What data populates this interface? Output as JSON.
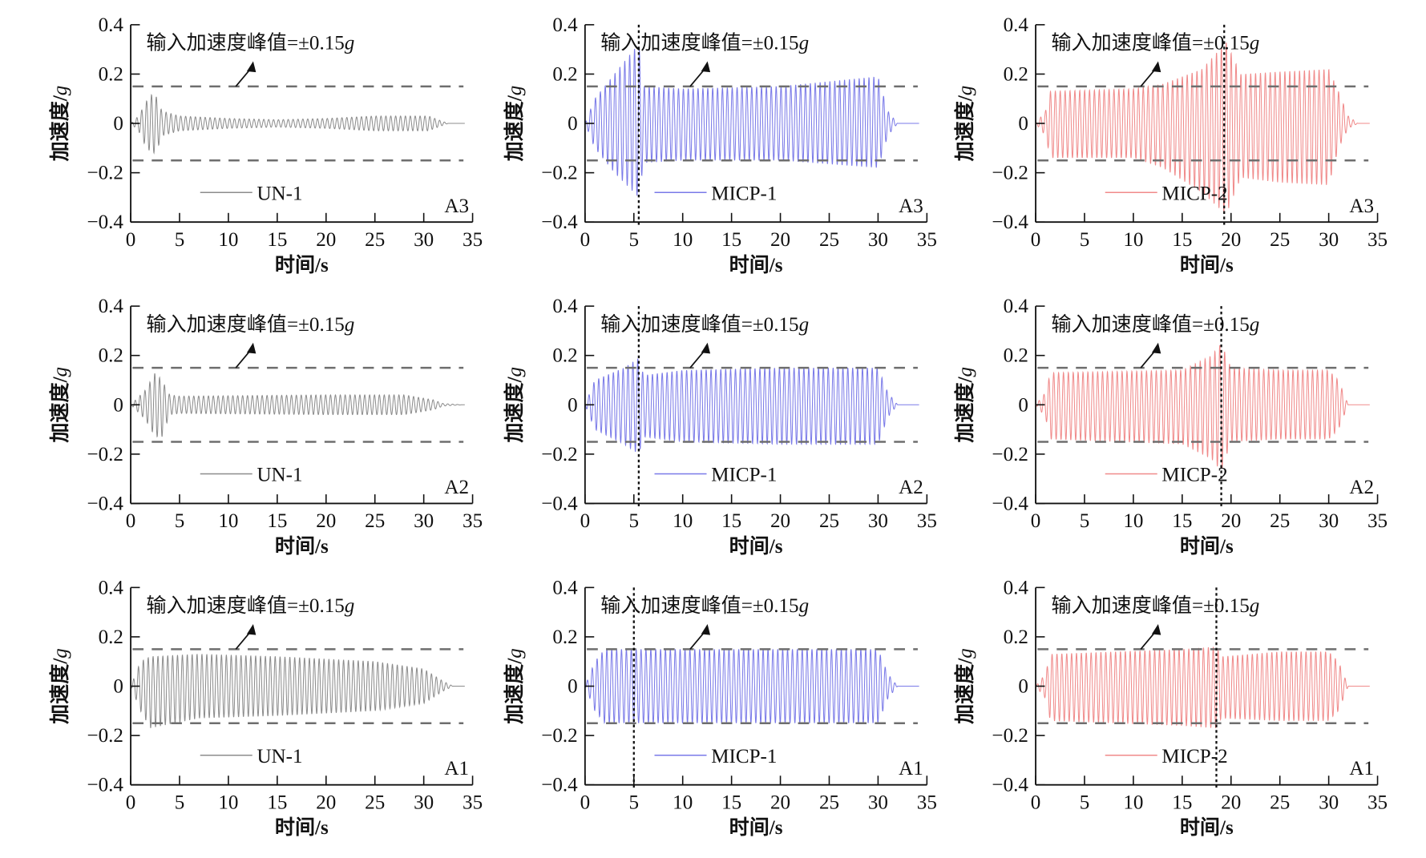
{
  "chart_data": {
    "type": "line",
    "layout": "3x3 grid",
    "xlabel": "时间/s",
    "ylabel_text": "加速度/",
    "ylabel_unit": "g",
    "xlim": [
      0,
      35
    ],
    "ylim": [
      -0.4,
      0.4
    ],
    "xticks": [
      "0",
      "5",
      "10",
      "15",
      "20",
      "25",
      "30",
      "35"
    ],
    "yticks": [
      "0.4",
      "0.2",
      "0",
      "−0.2",
      "−0.4"
    ],
    "ytick_values": [
      0.4,
      0.2,
      0,
      -0.2,
      -0.4
    ],
    "xtick_values": [
      0,
      5,
      10,
      15,
      20,
      25,
      30,
      35
    ],
    "reference_lines": [
      0.15,
      -0.15
    ],
    "annotation_text": "输入加速度峰值=±0.15",
    "annotation_unit": "g",
    "frequency_hz": 2,
    "panels": [
      {
        "series": "UN-1",
        "position": "A3",
        "color": "#8c8c8c",
        "marker_time": null,
        "envelope": [
          [
            0,
            0,
            0
          ],
          [
            0.8,
            0.03,
            0.03
          ],
          [
            1.6,
            0.09,
            0.1
          ],
          [
            2.2,
            0.12,
            0.12
          ],
          [
            2.6,
            0.11,
            0.12
          ],
          [
            3.2,
            0.05,
            0.05
          ],
          [
            5,
            0.03,
            0.03
          ],
          [
            10,
            0.02,
            0.02
          ],
          [
            15,
            0.015,
            0.015
          ],
          [
            20,
            0.02,
            0.02
          ],
          [
            25,
            0.03,
            0.03
          ],
          [
            30.5,
            0.03,
            0.03
          ],
          [
            31.8,
            0.01,
            0.01
          ],
          [
            32.5,
            0,
            0
          ],
          [
            35,
            0,
            0
          ]
        ]
      },
      {
        "series": "MICP-1",
        "position": "A3",
        "color": "#7a7ae8",
        "marker_time": 5.5,
        "envelope": [
          [
            0,
            0,
            0
          ],
          [
            1,
            0.1,
            0.1
          ],
          [
            3,
            0.2,
            0.2
          ],
          [
            5,
            0.3,
            0.28
          ],
          [
            5.5,
            0.32,
            0.3
          ],
          [
            6,
            0.15,
            0.16
          ],
          [
            10,
            0.14,
            0.15
          ],
          [
            20,
            0.15,
            0.15
          ],
          [
            30,
            0.19,
            0.18
          ],
          [
            31,
            0.05,
            0.05
          ],
          [
            32,
            0,
            0
          ],
          [
            35,
            0,
            0
          ]
        ]
      },
      {
        "series": "MICP-2",
        "position": "A3",
        "color": "#f08a8a",
        "marker_time": 19.3,
        "envelope": [
          [
            0,
            0,
            0
          ],
          [
            1,
            0.05,
            0.05
          ],
          [
            1.5,
            0.13,
            0.14
          ],
          [
            10,
            0.14,
            0.14
          ],
          [
            13,
            0.16,
            0.18
          ],
          [
            17,
            0.22,
            0.28
          ],
          [
            19.5,
            0.33,
            0.37
          ],
          [
            21,
            0.2,
            0.22
          ],
          [
            25,
            0.21,
            0.24
          ],
          [
            30,
            0.22,
            0.25
          ],
          [
            31,
            0.13,
            0.1
          ],
          [
            32,
            0.03,
            0.02
          ],
          [
            33,
            0,
            0
          ],
          [
            35,
            0,
            0
          ]
        ]
      },
      {
        "series": "UN-1",
        "position": "A2",
        "color": "#8c8c8c",
        "marker_time": null,
        "envelope": [
          [
            0,
            0,
            0
          ],
          [
            1.5,
            0.06,
            0.06
          ],
          [
            2.5,
            0.13,
            0.13
          ],
          [
            3.2,
            0.1,
            0.13
          ],
          [
            4,
            0.04,
            0.04
          ],
          [
            5,
            0.035,
            0.035
          ],
          [
            20,
            0.04,
            0.04
          ],
          [
            28,
            0.04,
            0.04
          ],
          [
            31,
            0.02,
            0.02
          ],
          [
            32,
            0.005,
            0.005
          ],
          [
            34,
            0,
            0
          ],
          [
            35,
            0,
            0
          ]
        ]
      },
      {
        "series": "MICP-1",
        "position": "A2",
        "color": "#7a7ae8",
        "marker_time": 5.5,
        "envelope": [
          [
            0,
            0,
            0
          ],
          [
            1,
            0.1,
            0.1
          ],
          [
            4,
            0.15,
            0.16
          ],
          [
            5.5,
            0.19,
            0.2
          ],
          [
            6,
            0.12,
            0.13
          ],
          [
            10,
            0.14,
            0.15
          ],
          [
            20,
            0.15,
            0.16
          ],
          [
            30,
            0.15,
            0.16
          ],
          [
            31,
            0.05,
            0.05
          ],
          [
            32,
            0,
            0
          ],
          [
            35,
            0,
            0
          ]
        ]
      },
      {
        "series": "MICP-2",
        "position": "A2",
        "color": "#f08a8a",
        "marker_time": 19.0,
        "envelope": [
          [
            0,
            0,
            0
          ],
          [
            1,
            0.05,
            0.05
          ],
          [
            1.5,
            0.13,
            0.14
          ],
          [
            15,
            0.14,
            0.16
          ],
          [
            18,
            0.2,
            0.22
          ],
          [
            19,
            0.25,
            0.27
          ],
          [
            20,
            0.15,
            0.15
          ],
          [
            25,
            0.14,
            0.14
          ],
          [
            30,
            0.14,
            0.14
          ],
          [
            31,
            0.1,
            0.1
          ],
          [
            32,
            0,
            0
          ],
          [
            35,
            0,
            0
          ]
        ]
      },
      {
        "series": "UN-1",
        "position": "A1",
        "color": "#8c8c8c",
        "marker_time": null,
        "envelope": [
          [
            0,
            0,
            0
          ],
          [
            1,
            0.1,
            0.1
          ],
          [
            2,
            0.12,
            0.17
          ],
          [
            7,
            0.13,
            0.13
          ],
          [
            15,
            0.12,
            0.12
          ],
          [
            25,
            0.1,
            0.1
          ],
          [
            30,
            0.07,
            0.07
          ],
          [
            32,
            0.02,
            0.02
          ],
          [
            33,
            0,
            0
          ],
          [
            35,
            0,
            0
          ]
        ]
      },
      {
        "series": "MICP-1",
        "position": "A1",
        "color": "#7a7ae8",
        "marker_time": 5.0,
        "envelope": [
          [
            0,
            0,
            0
          ],
          [
            1,
            0.1,
            0.1
          ],
          [
            2,
            0.15,
            0.15
          ],
          [
            30,
            0.15,
            0.15
          ],
          [
            31,
            0.05,
            0.05
          ],
          [
            32,
            0,
            0
          ],
          [
            35,
            0,
            0
          ]
        ]
      },
      {
        "series": "MICP-2",
        "position": "A1",
        "color": "#f08a8a",
        "marker_time": 18.5,
        "envelope": [
          [
            0,
            0,
            0
          ],
          [
            1,
            0.05,
            0.05
          ],
          [
            1.5,
            0.13,
            0.14
          ],
          [
            15,
            0.15,
            0.16
          ],
          [
            18.5,
            0.16,
            0.17
          ],
          [
            19,
            0.12,
            0.13
          ],
          [
            25,
            0.14,
            0.14
          ],
          [
            30,
            0.14,
            0.14
          ],
          [
            31,
            0.1,
            0.1
          ],
          [
            32,
            0,
            0
          ],
          [
            35,
            0,
            0
          ]
        ]
      }
    ],
    "colors": {
      "reference": "#6e6e6e",
      "axis": "#111111",
      "marker": "#111111"
    }
  }
}
